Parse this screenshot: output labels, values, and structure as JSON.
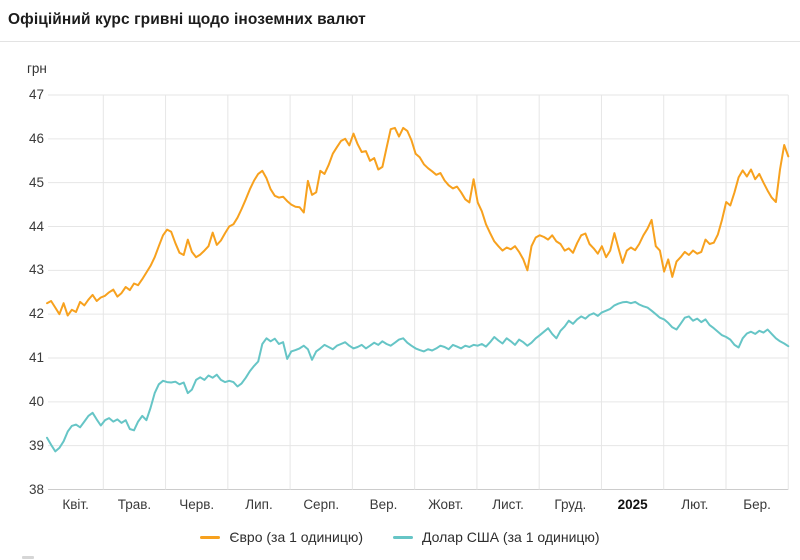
{
  "header": {
    "title": "Офіційний курс гривні щодо іноземних валют"
  },
  "chart_data": {
    "type": "line",
    "title": "Офіційний курс гривні щодо іноземних валют",
    "unit_label": "грн",
    "ylabel": "грн",
    "ylim": [
      38,
      47
    ],
    "y_ticks": [
      47,
      46,
      45,
      44,
      43,
      42,
      41,
      40,
      39,
      38
    ],
    "x_ticks": [
      "Квіт.",
      "Трав.",
      "Черв.",
      "Лип.",
      "Серп.",
      "Вер.",
      "Жовт.",
      "Лист.",
      "Груд.",
      "2025",
      "Лют.",
      "Бер."
    ],
    "bold_tick": "2025",
    "grid": true,
    "legend_position": "bottom",
    "colors": {
      "euro": "#F7A11E",
      "usd": "#66C5C6",
      "gridline": "#e6e6e6",
      "baseline": "#cccccc"
    },
    "series": [
      {
        "name": "Євро (за 1 одиницю)",
        "color": "#F7A11E",
        "values": [
          42.25,
          42.3,
          42.15,
          42.0,
          42.25,
          41.97,
          42.1,
          42.05,
          42.28,
          42.2,
          42.33,
          42.44,
          42.3,
          42.38,
          42.42,
          42.5,
          42.56,
          42.4,
          42.48,
          42.62,
          42.55,
          42.7,
          42.66,
          42.8,
          42.95,
          43.1,
          43.3,
          43.55,
          43.8,
          43.93,
          43.88,
          43.62,
          43.4,
          43.35,
          43.7,
          43.42,
          43.3,
          43.36,
          43.45,
          43.55,
          43.86,
          43.58,
          43.68,
          43.85,
          44.0,
          44.05,
          44.2,
          44.4,
          44.62,
          44.85,
          45.05,
          45.2,
          45.27,
          45.1,
          44.85,
          44.7,
          44.66,
          44.68,
          44.58,
          44.5,
          44.45,
          44.44,
          44.32,
          45.04,
          44.72,
          44.78,
          45.27,
          45.2,
          45.4,
          45.66,
          45.81,
          45.95,
          46.0,
          45.85,
          46.12,
          45.88,
          45.7,
          45.72,
          45.5,
          45.56,
          45.3,
          45.36,
          45.8,
          46.22,
          46.25,
          46.05,
          46.25,
          46.18,
          45.97,
          45.66,
          45.58,
          45.42,
          45.33,
          45.26,
          45.18,
          45.22,
          45.05,
          44.94,
          44.87,
          44.91,
          44.78,
          44.62,
          44.55,
          45.08,
          44.55,
          44.35,
          44.05,
          43.85,
          43.66,
          43.55,
          43.45,
          43.52,
          43.48,
          43.55,
          43.42,
          43.25,
          43.0,
          43.55,
          43.75,
          43.8,
          43.76,
          43.7,
          43.8,
          43.66,
          43.6,
          43.45,
          43.5,
          43.4,
          43.62,
          43.8,
          43.84,
          43.6,
          43.5,
          43.38,
          43.55,
          43.3,
          43.45,
          43.85,
          43.5,
          43.17,
          43.45,
          43.52,
          43.46,
          43.6,
          43.8,
          43.95,
          44.15,
          43.55,
          43.45,
          42.97,
          43.25,
          42.85,
          43.2,
          43.3,
          43.42,
          43.35,
          43.45,
          43.38,
          43.42,
          43.7,
          43.6,
          43.63,
          43.82,
          44.15,
          44.56,
          44.48,
          44.78,
          45.12,
          45.28,
          45.14,
          45.3,
          45.08,
          45.2,
          45.0,
          44.82,
          44.66,
          44.56,
          45.3,
          45.86,
          45.6
        ]
      },
      {
        "name": "Долар США (за 1 одиницю)",
        "color": "#66C5C6",
        "values": [
          39.18,
          39.02,
          38.87,
          38.95,
          39.1,
          39.32,
          39.45,
          39.48,
          39.42,
          39.55,
          39.68,
          39.75,
          39.6,
          39.46,
          39.58,
          39.63,
          39.55,
          39.6,
          39.52,
          39.58,
          39.38,
          39.35,
          39.55,
          39.68,
          39.58,
          39.86,
          40.2,
          40.4,
          40.48,
          40.45,
          40.44,
          40.46,
          40.4,
          40.44,
          40.2,
          40.28,
          40.5,
          40.56,
          40.5,
          40.6,
          40.55,
          40.62,
          40.5,
          40.45,
          40.48,
          40.45,
          40.35,
          40.42,
          40.55,
          40.7,
          40.82,
          40.92,
          41.32,
          41.45,
          41.38,
          41.44,
          41.32,
          41.36,
          40.98,
          41.15,
          41.18,
          41.22,
          41.28,
          41.2,
          40.96,
          41.15,
          41.22,
          41.3,
          41.25,
          41.2,
          41.28,
          41.32,
          41.36,
          41.28,
          41.22,
          41.25,
          41.3,
          41.22,
          41.28,
          41.35,
          41.3,
          41.38,
          41.32,
          41.28,
          41.35,
          41.42,
          41.45,
          41.35,
          41.28,
          41.22,
          41.18,
          41.15,
          41.2,
          41.17,
          41.22,
          41.28,
          41.25,
          41.2,
          41.3,
          41.26,
          41.22,
          41.28,
          41.25,
          41.3,
          41.28,
          41.32,
          41.26,
          41.36,
          41.48,
          41.4,
          41.33,
          41.45,
          41.38,
          41.3,
          41.42,
          41.36,
          41.28,
          41.35,
          41.45,
          41.52,
          41.6,
          41.68,
          41.55,
          41.45,
          41.62,
          41.72,
          41.85,
          41.78,
          41.88,
          41.95,
          41.9,
          41.98,
          42.02,
          41.96,
          42.04,
          42.08,
          42.12,
          42.2,
          42.24,
          42.27,
          42.28,
          42.25,
          42.28,
          42.22,
          42.18,
          42.15,
          42.08,
          42.0,
          41.92,
          41.88,
          41.8,
          41.7,
          41.65,
          41.78,
          41.92,
          41.95,
          41.85,
          41.9,
          41.82,
          41.88,
          41.75,
          41.68,
          41.6,
          41.52,
          41.48,
          41.42,
          41.3,
          41.24,
          41.45,
          41.56,
          41.6,
          41.55,
          41.62,
          41.58,
          41.65,
          41.55,
          41.45,
          41.38,
          41.33,
          41.27
        ]
      }
    ]
  }
}
